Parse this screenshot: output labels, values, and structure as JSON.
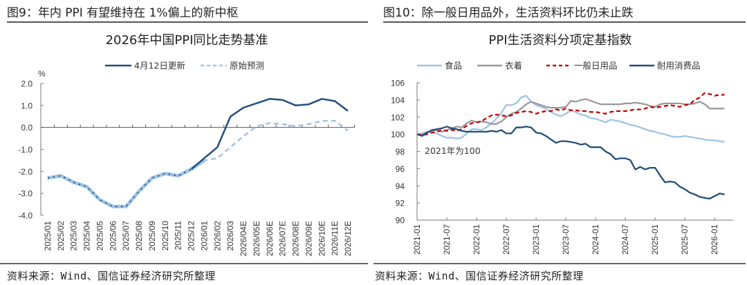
{
  "left": {
    "figure_title": "图9：年内 PPI 有望维持在 1%偏上的新中枢",
    "source": "资料来源：Wind、国信证券经济研究所整理"
  },
  "right": {
    "figure_title": "图10：除一般日用品外，生活资料环比仍未止跌",
    "source": "资料来源：Wind、国信证券经济研究所整理"
  },
  "chart_data": [
    {
      "type": "line",
      "title": "2026年中国PPI同比走势基准",
      "ylabel": "%",
      "xlabel": "",
      "ylim": [
        -4.0,
        2.0
      ],
      "yticks": [
        "2.0",
        "1.0",
        "0.0",
        "-1.0",
        "-2.0",
        "-3.0",
        "-4.0"
      ],
      "ytick_values": [
        2,
        1,
        0,
        -1,
        -2,
        -3,
        -4
      ],
      "legend_position": "top-center",
      "grid": false,
      "categories": [
        "2025/01",
        "2025/02",
        "2025/03",
        "2025/04",
        "2025/05",
        "2025/06",
        "2025/07",
        "2025/08",
        "2025/09",
        "2025/10",
        "2025/11",
        "2025/12",
        "2026/01",
        "2026/02",
        "2026/03",
        "2026/04E",
        "2026/05E",
        "2026/06E",
        "2026/07E",
        "2026/08E",
        "2026/09E",
        "2026/10E",
        "2026/11E",
        "2026/12E"
      ],
      "series": [
        {
          "name": "4月12日更新",
          "color": "#1f4e79",
          "style": "solid",
          "values": [
            -2.3,
            -2.2,
            -2.5,
            -2.7,
            -3.3,
            -3.6,
            -3.6,
            -2.9,
            -2.3,
            -2.1,
            -2.2,
            -1.9,
            -1.4,
            -0.9,
            0.5,
            0.9,
            1.1,
            1.3,
            1.25,
            1.0,
            1.05,
            1.3,
            1.2,
            0.75
          ]
        },
        {
          "name": "原始预测",
          "color": "#9dc3e6",
          "style": "dashed",
          "values": [
            -2.3,
            -2.2,
            -2.5,
            -2.7,
            -3.3,
            -3.6,
            -3.6,
            -2.9,
            -2.3,
            -2.1,
            -2.2,
            -1.9,
            -1.5,
            -1.4,
            -0.9,
            -0.4,
            0.05,
            0.2,
            0.15,
            0.05,
            0.15,
            0.3,
            0.3,
            -0.15
          ]
        }
      ]
    },
    {
      "type": "line",
      "title": "PPI生活资料分项定基指数",
      "ylabel": "",
      "xlabel": "",
      "ylim": [
        90,
        106
      ],
      "yticks": [
        "106",
        "104",
        "102",
        "100",
        "98",
        "96",
        "94",
        "92",
        "90"
      ],
      "ytick_values": [
        106,
        104,
        102,
        100,
        98,
        96,
        94,
        92,
        90
      ],
      "xticks": [
        "2021-01",
        "2021-07",
        "2022-01",
        "2022-07",
        "2023-01",
        "2023-07",
        "2024-01",
        "2024-07",
        "2025-01",
        "2025-07",
        "2026-01"
      ],
      "x_start": "2021-01",
      "x_end": "2026-03",
      "annotation": "2021年为100",
      "legend_position": "top-center",
      "grid": false,
      "series": [
        {
          "name": "食品",
          "color": "#9dc3e6",
          "style": "solid",
          "values": [
            100,
            100.1,
            100.3,
            100.2,
            100.1,
            99.8,
            99.6,
            99.6,
            99.5,
            99.6,
            100.1,
            100.6,
            100.6,
            100.5,
            100.8,
            101.3,
            101.8,
            102.5,
            103.4,
            103.4,
            103.6,
            104.3,
            104.5,
            103.8,
            103.4,
            103.2,
            103.0,
            102.6,
            102.3,
            102.1,
            102.4,
            102.8,
            102.6,
            102.3,
            102.2,
            101.9,
            101.8,
            101.6,
            101.4,
            101.7,
            101.6,
            101.5,
            101.3,
            101.1,
            101.0,
            100.8,
            100.6,
            100.4,
            100.3,
            100.1,
            100.0,
            99.8,
            99.7,
            99.7,
            99.8,
            99.7,
            99.6,
            99.5,
            99.4,
            99.3,
            99.3,
            99.2,
            99.1
          ]
        },
        {
          "name": "衣着",
          "color": "#999999",
          "style": "solid",
          "values": [
            100,
            100.0,
            100.2,
            100.4,
            100.5,
            100.3,
            100.5,
            100.7,
            100.9,
            100.8,
            101.3,
            101.6,
            101.4,
            101.5,
            101.4,
            101.2,
            101.2,
            101.5,
            102.0,
            102.4,
            102.6,
            103.0,
            103.5,
            103.8,
            103.6,
            103.4,
            103.2,
            103.1,
            103.1,
            103.1,
            103.2,
            103.9,
            103.8,
            104.0,
            104.1,
            103.9,
            103.7,
            103.5,
            103.5,
            103.5,
            103.5,
            103.5,
            103.6,
            103.6,
            103.7,
            103.6,
            103.5,
            103.3,
            103.2,
            103.5,
            103.6,
            103.6,
            103.6,
            103.6,
            103.5,
            103.5,
            103.6,
            103.8,
            103.5,
            103.0,
            103.0,
            103.0,
            103.0
          ]
        },
        {
          "name": "一般日用品",
          "color": "#c00000",
          "style": "dashed",
          "values": [
            100,
            99.9,
            100.0,
            100.2,
            100.3,
            100.5,
            100.4,
            100.5,
            100.4,
            100.6,
            101.0,
            101.3,
            101.4,
            101.5,
            101.9,
            102.2,
            102.3,
            102.2,
            102.1,
            102.2,
            102.5,
            102.6,
            102.7,
            102.6,
            102.4,
            102.6,
            102.7,
            102.7,
            102.9,
            102.8,
            103.0,
            102.8,
            102.8,
            102.7,
            102.7,
            102.6,
            102.6,
            102.5,
            102.4,
            102.6,
            102.7,
            102.7,
            102.7,
            102.8,
            102.9,
            102.9,
            103.0,
            103.2,
            103.1,
            103.2,
            103.3,
            103.4,
            103.3,
            103.2,
            103.4,
            103.5,
            104.0,
            104.3,
            104.8,
            104.7,
            104.5,
            104.6,
            104.6
          ]
        },
        {
          "name": "耐用消费品",
          "color": "#1f4e79",
          "style": "solid",
          "values": [
            100,
            99.8,
            100.2,
            100.5,
            100.6,
            100.7,
            100.9,
            100.7,
            100.6,
            100.4,
            100.3,
            100.3,
            100.3,
            100.3,
            100.3,
            100.4,
            100.3,
            100.5,
            100.1,
            100.1,
            100.8,
            100.8,
            100.9,
            100.8,
            100.2,
            100.1,
            99.8,
            99.4,
            99.0,
            99.2,
            99.2,
            99.1,
            99.0,
            98.8,
            98.9,
            98.5,
            98.5,
            98.5,
            98.0,
            97.7,
            97.1,
            97.2,
            97.2,
            97.0,
            95.9,
            96.2,
            95.9,
            96.1,
            96.1,
            95.2,
            94.4,
            94.5,
            94.4,
            93.9,
            93.6,
            93.2,
            93.0,
            92.7,
            92.6,
            92.5,
            92.8,
            93.1,
            93.0
          ]
        }
      ]
    }
  ]
}
